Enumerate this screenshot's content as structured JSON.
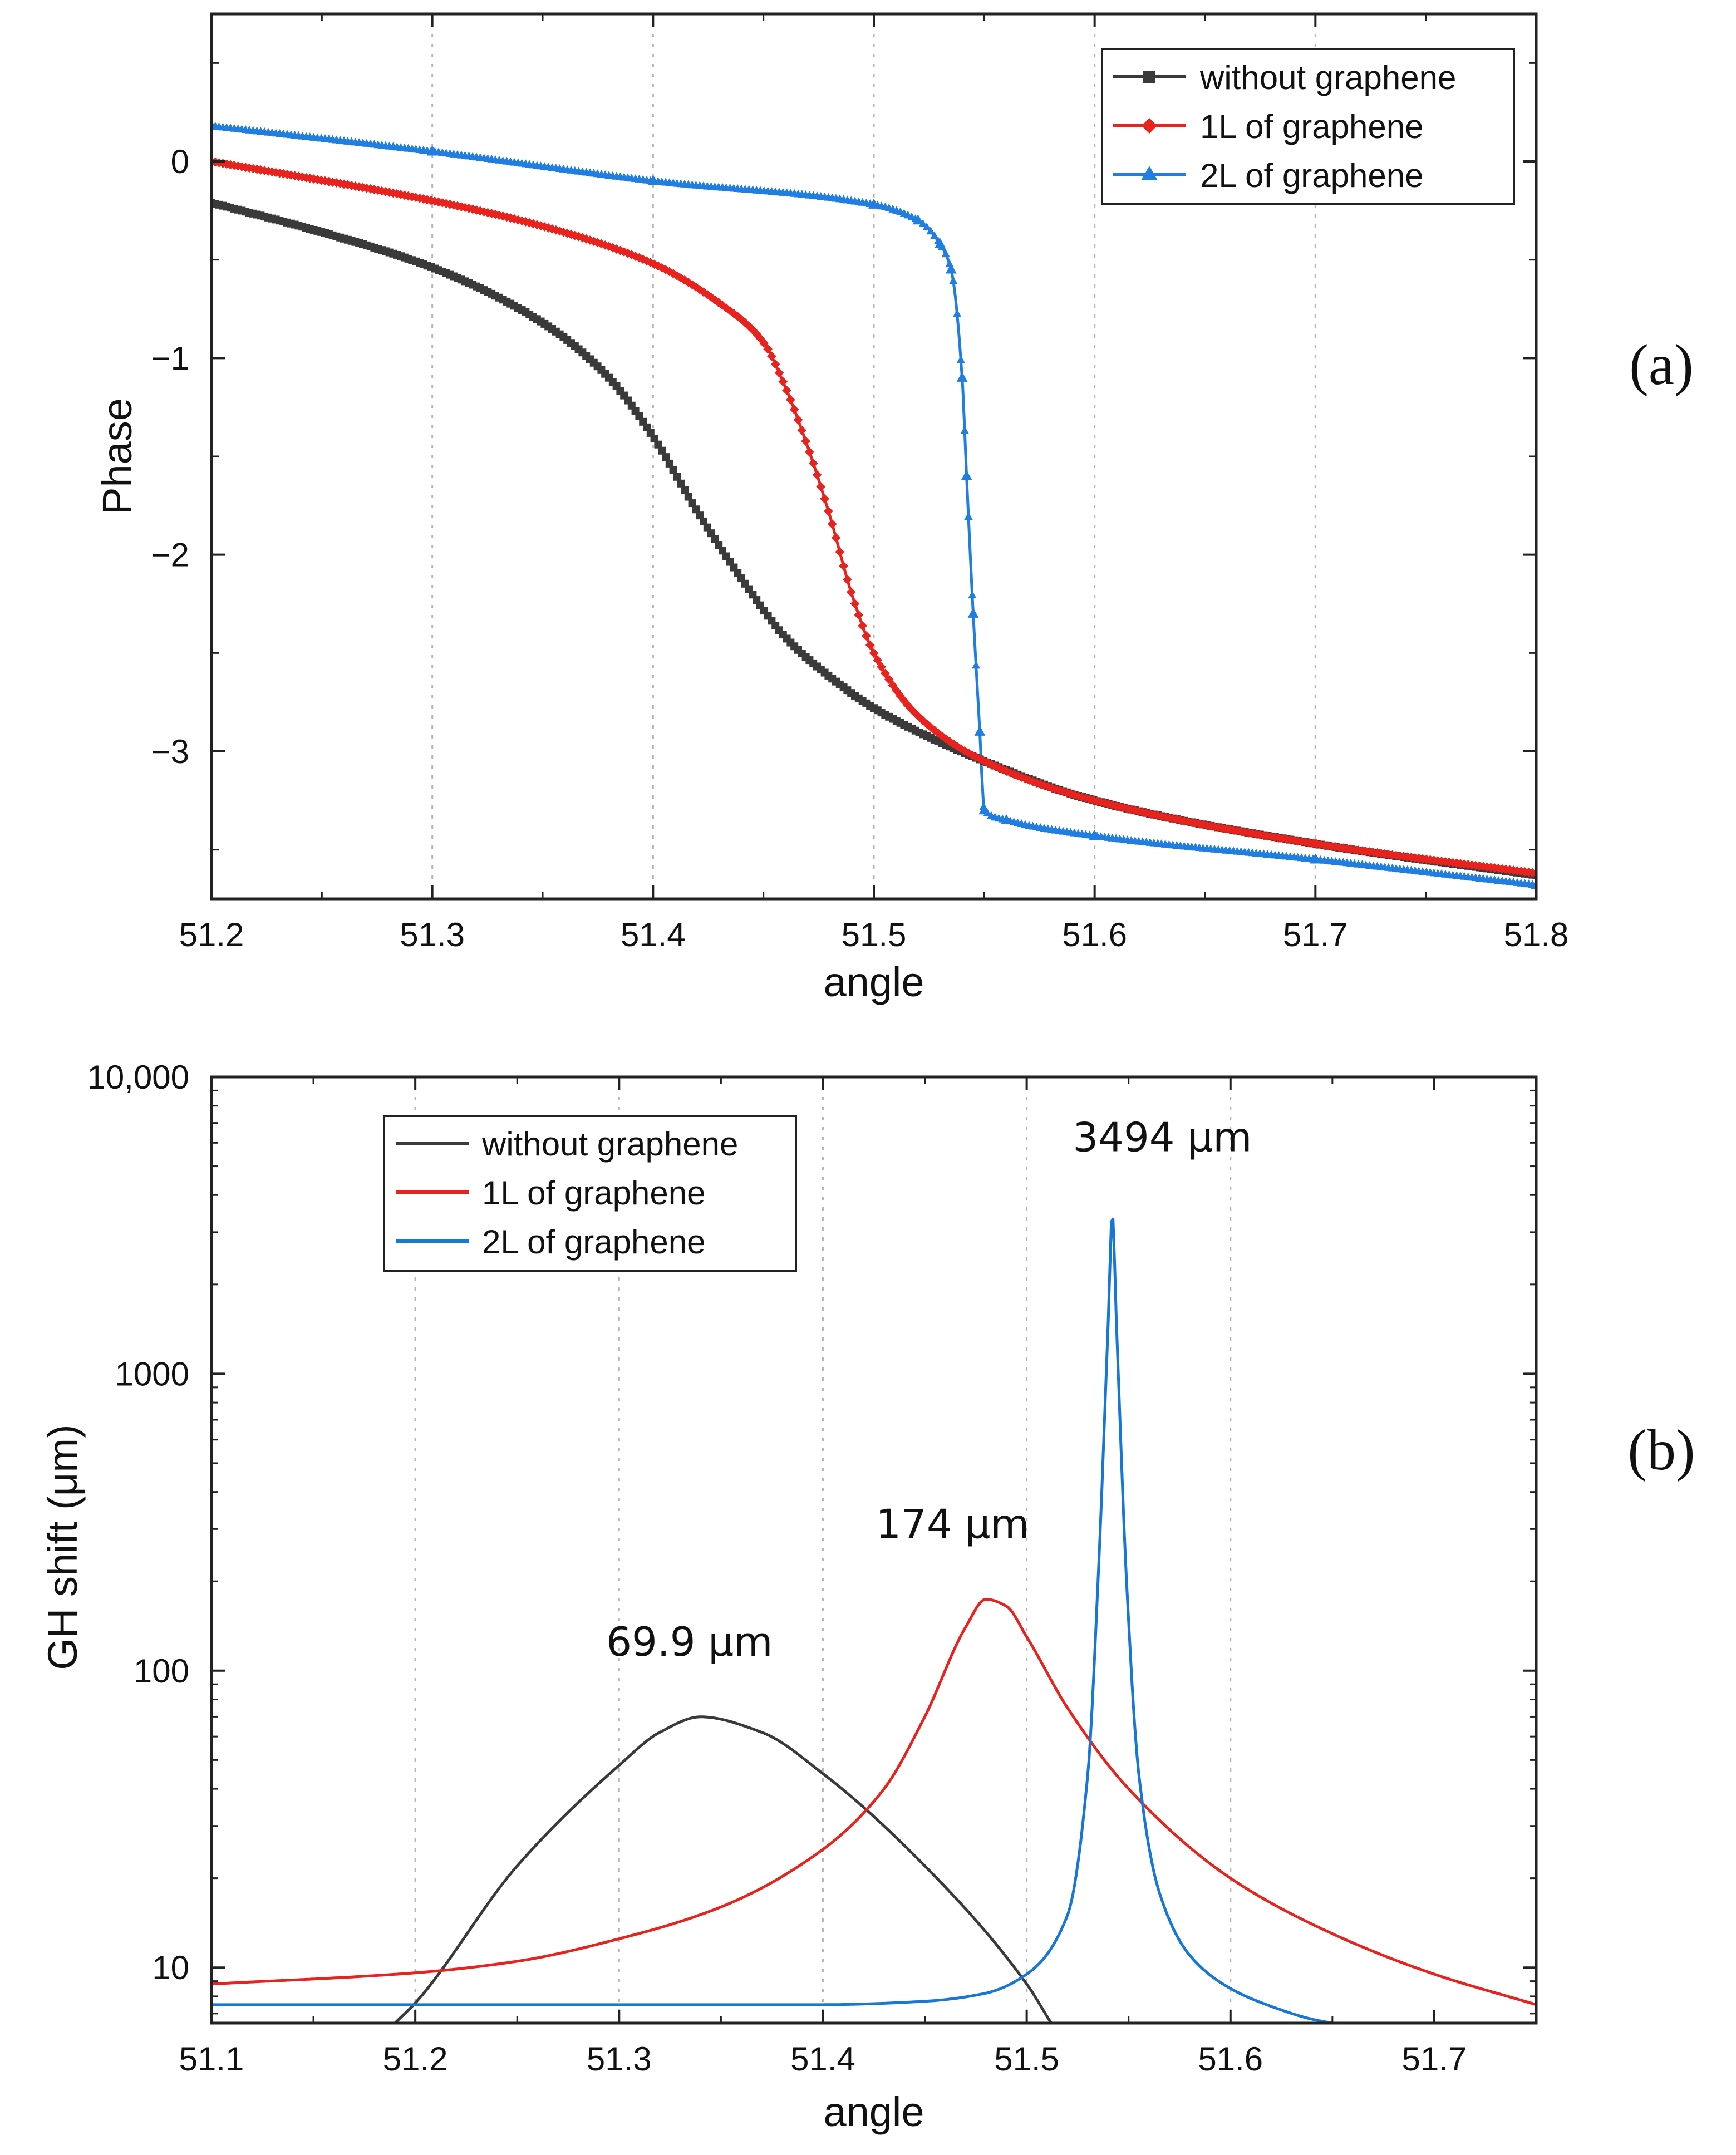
{
  "chart_data": [
    {
      "type": "line",
      "panel_label": "(a)",
      "title": "",
      "xlabel": "angle",
      "ylabel": "Phase",
      "xlim": [
        51.2,
        51.8
      ],
      "ylim": [
        -3.75,
        0.75
      ],
      "grid": "vertical dotted",
      "legend_position": "top-right",
      "x_tick_labels": [
        "51.2",
        "51.3",
        "51.4",
        "51.5",
        "51.6",
        "51.7",
        "51.8"
      ],
      "y_ticks": [
        0,
        -1,
        -2,
        -3
      ],
      "y_tick_labels": [
        "0",
        "−1",
        "−2",
        "−3"
      ],
      "series": [
        {
          "name": "without graphene",
          "color": "#3a3a3a",
          "marker": "square",
          "x": [
            51.2,
            51.25,
            51.3,
            51.35,
            51.38,
            51.4,
            51.42,
            51.44,
            51.46,
            51.48,
            51.5,
            51.55,
            51.6,
            51.7,
            51.8
          ],
          "y": [
            -0.21,
            -0.36,
            -0.54,
            -0.82,
            -1.1,
            -1.4,
            -1.78,
            -2.12,
            -2.42,
            -2.62,
            -2.78,
            -3.05,
            -3.25,
            -3.47,
            -3.63
          ]
        },
        {
          "name": "1L of graphene",
          "color": "#e8231e",
          "marker": "diamond",
          "x": [
            51.2,
            51.3,
            51.35,
            51.4,
            51.43,
            51.45,
            51.46,
            51.47,
            51.48,
            51.49,
            51.5,
            51.52,
            51.55,
            51.6,
            51.7,
            51.8
          ],
          "y": [
            0.0,
            -0.2,
            -0.33,
            -0.52,
            -0.72,
            -0.92,
            -1.15,
            -1.45,
            -1.8,
            -2.2,
            -2.5,
            -2.82,
            -3.05,
            -3.25,
            -3.47,
            -3.62
          ]
        },
        {
          "name": "2L of graphene",
          "color": "#1f7ee0",
          "marker": "triangle",
          "x": [
            51.2,
            51.3,
            51.4,
            51.5,
            51.52,
            51.53,
            51.535,
            51.54,
            51.542,
            51.545,
            51.548,
            51.55,
            51.56,
            51.6,
            51.7,
            51.8
          ],
          "y": [
            0.18,
            0.05,
            -0.1,
            -0.22,
            -0.3,
            -0.42,
            -0.55,
            -1.1,
            -1.6,
            -2.3,
            -2.9,
            -3.3,
            -3.35,
            -3.43,
            -3.55,
            -3.68
          ]
        }
      ]
    },
    {
      "type": "line",
      "panel_label": "(b)",
      "title": "",
      "xlabel": "angle",
      "ylabel": "GH shift (μm)",
      "xlim": [
        51.1,
        51.75
      ],
      "ylim": [
        6.5,
        10000
      ],
      "yscale": "log",
      "grid": "vertical dotted",
      "legend_position": "top-left",
      "x_tick_labels": [
        "51.1",
        "51.2",
        "51.3",
        "51.4",
        "51.5",
        "51.6",
        "51.7"
      ],
      "y_ticks": [
        10,
        100,
        1000,
        10000
      ],
      "y_tick_labels": [
        "10",
        "100",
        "1000",
        "10,000"
      ],
      "annotations": [
        {
          "text": "69.9 μm",
          "x": 51.34,
          "y": 69.9
        },
        {
          "text": "174 μm",
          "x": 51.48,
          "y": 174
        },
        {
          "text": "3494 μm",
          "x": 51.542,
          "y": 3494
        }
      ],
      "series": [
        {
          "name": "without graphene",
          "color": "#3a3a3a",
          "x": [
            51.19,
            51.2,
            51.25,
            51.3,
            51.32,
            51.34,
            51.37,
            51.4,
            51.45,
            51.5,
            51.512
          ],
          "y": [
            6.5,
            7.6,
            22,
            48,
            62,
            69.9,
            62,
            45,
            22,
            8.8,
            6.5
          ]
        },
        {
          "name": "1L of graphene",
          "color": "#e8231e",
          "x": [
            51.1,
            51.2,
            51.25,
            51.3,
            51.35,
            51.4,
            51.43,
            51.45,
            51.47,
            51.48,
            51.49,
            51.5,
            51.52,
            51.55,
            51.6,
            51.65,
            51.7,
            51.75
          ],
          "y": [
            8.8,
            9.6,
            10.5,
            12.5,
            16,
            25,
            40,
            70,
            140,
            174,
            165,
            130,
            75,
            40,
            20,
            13,
            9.5,
            7.5
          ]
        },
        {
          "name": "2L of graphene",
          "color": "#1677d9",
          "x": [
            51.1,
            51.4,
            51.45,
            51.48,
            51.5,
            51.52,
            51.53,
            51.535,
            51.54,
            51.542,
            51.544,
            51.549,
            51.555,
            51.565,
            51.58,
            51.6,
            51.62,
            51.64,
            51.65
          ],
          "y": [
            7.5,
            7.5,
            7.7,
            8.2,
            9.5,
            15,
            45,
            200,
            1500,
            3494,
            1500,
            200,
            45,
            18,
            11,
            8.5,
            7.4,
            6.7,
            6.5
          ]
        }
      ]
    }
  ]
}
